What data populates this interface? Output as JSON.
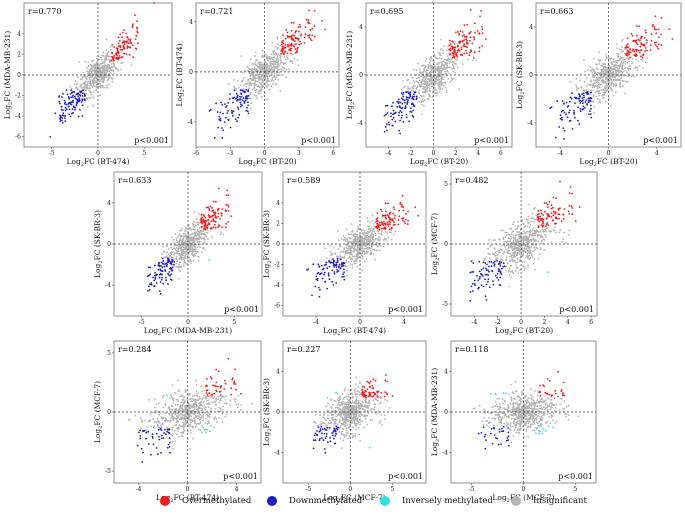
{
  "colors": {
    "overmethylated": "#ee1c1c",
    "downmethylated": "#1c1ccc",
    "inversely_methylated": "#33e0e0",
    "insignificant": "#b4b4b4"
  },
  "legend": [
    {
      "key": "overmethylated",
      "label": "Overmethylated"
    },
    {
      "key": "downmethylated",
      "label": "Downmethylated"
    },
    {
      "key": "inversely_methylated",
      "label": "Inversely methylated"
    },
    {
      "key": "insignificant",
      "label": "Insignificant"
    }
  ],
  "chart_data": [
    {
      "type": "scatter",
      "r": "r=0.770",
      "p": "p<0.001",
      "xlabel_base": "BT-474",
      "ylabel_base": "MDA-MB-231",
      "xlim": [
        -8,
        8
      ],
      "ylim": [
        -7,
        7
      ],
      "xticks": [
        -5,
        0,
        5
      ],
      "yticks": [
        -6,
        -4,
        -2,
        0,
        2,
        4
      ],
      "x_threshold": 1.4,
      "y_threshold": 1.4,
      "spread": 0.85,
      "noise": 1.5
    },
    {
      "type": "scatter",
      "r": "r=0.721",
      "p": "p<0.001",
      "xlabel_base": "BT-20",
      "ylabel_base": "BT-474",
      "xlim": [
        -6,
        6.5
      ],
      "ylim": [
        -6,
        5.5
      ],
      "xticks": [
        -6,
        -3,
        0,
        3,
        6
      ],
      "yticks": [
        -4,
        0,
        4
      ],
      "x_threshold": 1.4,
      "y_threshold": 1.4,
      "spread": 0.8,
      "noise": 1.4
    },
    {
      "type": "scatter",
      "r": "r=0.695",
      "p": "p<0.001",
      "xlabel_base": "BT-20",
      "ylabel_base": "MDA-MB-231",
      "xlim": [
        -6,
        7
      ],
      "ylim": [
        -6,
        6
      ],
      "xticks": [
        -4,
        -2,
        0,
        2,
        4,
        6
      ],
      "yticks": [
        -4,
        0,
        4
      ],
      "x_threshold": 1.4,
      "y_threshold": 1.4,
      "spread": 0.8,
      "noise": 1.5
    },
    {
      "type": "scatter",
      "r": "r=0.663",
      "p": "p<0.001",
      "xlabel_base": "BT-20",
      "ylabel_base": "SK-BR-3",
      "xlim": [
        -6,
        6
      ],
      "ylim": [
        -6,
        6
      ],
      "xticks": [
        -4,
        0,
        4
      ],
      "yticks": [
        -4,
        0,
        4
      ],
      "x_threshold": 1.4,
      "y_threshold": 1.4,
      "spread": 0.75,
      "noise": 1.6
    },
    {
      "type": "scatter",
      "r": "r=0.633",
      "p": "p<0.001",
      "xlabel_base": "MDA-MB-231",
      "ylabel_base": "SK-BR-3",
      "xlim": [
        -8,
        8
      ],
      "ylim": [
        -7,
        7
      ],
      "xticks": [
        -5,
        0,
        5
      ],
      "yticks": [
        -4,
        0,
        4
      ],
      "x_threshold": 1.4,
      "y_threshold": 1.4,
      "spread": 0.75,
      "noise": 1.6
    },
    {
      "type": "scatter",
      "r": "r=0.589",
      "p": "p<0.001",
      "xlabel_base": "BT-474",
      "ylabel_base": "SK-BR-3",
      "xlim": [
        -7,
        6
      ],
      "ylim": [
        -7,
        7
      ],
      "xticks": [
        -4,
        0,
        4
      ],
      "yticks": [
        -6,
        -4,
        -2,
        0,
        2,
        4
      ],
      "x_threshold": 1.4,
      "y_threshold": 1.4,
      "spread": 0.7,
      "noise": 1.6
    },
    {
      "type": "scatter",
      "r": "r=0.482",
      "p": "p<0.001",
      "xlabel_base": "BT-20",
      "ylabel_base": "MCF-7",
      "xlim": [
        -6,
        6.5
      ],
      "ylim": [
        -6,
        6
      ],
      "xticks": [
        -4,
        -2,
        0,
        2,
        4,
        6
      ],
      "yticks": [
        -5,
        0,
        5
      ],
      "x_threshold": 1.4,
      "y_threshold": 1.4,
      "spread": 0.6,
      "noise": 1.8
    },
    {
      "type": "scatter",
      "r": "r=0.284",
      "p": "p<0.001",
      "xlabel_base": "BT-474",
      "ylabel_base": "MCF-7",
      "xlim": [
        -6,
        6
      ],
      "ylim": [
        -6,
        6
      ],
      "xticks": [
        -4,
        0,
        4
      ],
      "yticks": [
        -5,
        0,
        5
      ],
      "x_threshold": 1.4,
      "y_threshold": 1.4,
      "spread": 0.35,
      "noise": 1.9
    },
    {
      "type": "scatter",
      "r": "r=0.227",
      "p": "p<0.001",
      "xlabel_base": "MCF-7",
      "ylabel_base": "SK-BR-3",
      "xlim": [
        -8,
        9
      ],
      "ylim": [
        -7,
        7
      ],
      "xticks": [
        -5,
        0,
        5
      ],
      "yticks": [
        -4,
        0,
        4
      ],
      "x_threshold": 1.4,
      "y_threshold": 1.4,
      "spread": 0.3,
      "noise": 2.0
    },
    {
      "type": "scatter",
      "r": "r=0.118",
      "p": "p<0.001",
      "xlabel_base": "MCF-7",
      "ylabel_base": "MDA-MB-231",
      "xlim": [
        -7,
        7
      ],
      "ylim": [
        -7,
        7
      ],
      "xticks": [
        -5,
        0,
        5
      ],
      "yticks": [
        -4,
        0,
        4
      ],
      "x_threshold": 1.4,
      "y_threshold": 1.4,
      "spread": 0.15,
      "noise": 2.0
    }
  ]
}
